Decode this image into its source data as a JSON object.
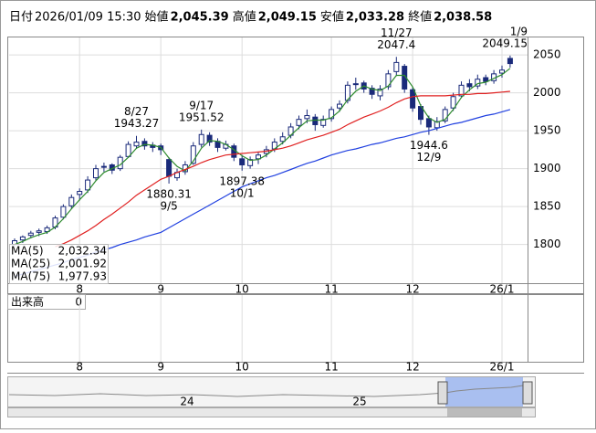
{
  "header": [
    {
      "label": "日付",
      "text": "2026/01/09 15:30"
    },
    {
      "label": "始値",
      "text": "2,045.39"
    },
    {
      "label": "高値",
      "text": "2,049.15",
      "color": "#e00000"
    },
    {
      "label": "安値",
      "text": "2,033.28",
      "color": "#008000"
    },
    {
      "label": "終値",
      "text": "2,038.58"
    }
  ],
  "chart_data": {
    "type": "candlestick",
    "categories": [
      null,
      null,
      null,
      null,
      null,
      null,
      null,
      null,
      "8",
      null,
      null,
      null,
      null,
      null,
      null,
      null,
      null,
      null,
      "9",
      null,
      null,
      null,
      null,
      null,
      null,
      null,
      null,
      null,
      "10",
      null,
      null,
      null,
      null,
      null,
      null,
      null,
      null,
      null,
      null,
      "11",
      null,
      null,
      null,
      null,
      null,
      null,
      null,
      null,
      null,
      "12",
      null,
      null,
      null,
      null,
      null,
      null,
      null,
      null,
      null,
      null,
      "26/1",
      null
    ],
    "open": [
      1800,
      1806,
      1812,
      1816,
      1817,
      1823,
      1836,
      1851,
      1866,
      1872,
      1888,
      1902,
      1905,
      1900,
      1916,
      1930,
      1936,
      1931,
      1930,
      1912,
      1888,
      1896,
      1907,
      1932,
      1944,
      1936,
      1927,
      1930,
      1913,
      1904,
      1913,
      1920,
      1926,
      1936,
      1944,
      1957,
      1966,
      1968,
      1957,
      1966,
      1980,
      1990,
      2011,
      2013,
      2006,
      1996,
      2008,
      2028,
      2035,
      2004,
      1982,
      1966,
      1954,
      1963,
      1980,
      1996,
      2012,
      2009,
      2020,
      2016,
      2026,
      2045.39
    ],
    "high": [
      1808,
      1812,
      1818,
      1821,
      1825,
      1838,
      1853,
      1866,
      1874,
      1890,
      1905,
      1908,
      1907,
      1918,
      1936,
      1943.27,
      1940,
      1935,
      1933,
      1915,
      1900,
      1910,
      1935,
      1951.52,
      1948,
      1940,
      1937,
      1933,
      1918,
      1916,
      1922,
      1930,
      1940,
      1948,
      1960,
      1970,
      1978,
      1972,
      1970,
      1982,
      1990,
      2015,
      2020,
      2016,
      2010,
      2010,
      2030,
      2047.4,
      2038,
      2008,
      1985,
      1970,
      1968,
      1982,
      2000,
      2015,
      2018,
      2024,
      2024,
      2030,
      2036,
      2049.15
    ],
    "low": [
      1797,
      1802,
      1808,
      1811,
      1814,
      1820,
      1833,
      1847,
      1858,
      1868,
      1884,
      1896,
      1893,
      1897,
      1914,
      1926,
      1925,
      1922,
      1918,
      1880.31,
      1884,
      1892,
      1905,
      1928,
      1930,
      1922,
      1924,
      1910,
      1897.38,
      1900,
      1906,
      1915,
      1922,
      1932,
      1940,
      1952,
      1960,
      1950,
      1954,
      1962,
      1975,
      1986,
      2004,
      2000,
      1992,
      1990,
      2004,
      2022,
      2000,
      1975,
      1958,
      1944.6,
      1950,
      1960,
      1976,
      1993,
      2002,
      2005,
      2010,
      2012,
      2020,
      2033.28
    ],
    "close": [
      1805,
      1810,
      1815,
      1818,
      1822,
      1835,
      1850,
      1862,
      1870,
      1885,
      1900,
      1903,
      1898,
      1915,
      1932,
      1935,
      1930,
      1928,
      1925,
      1890,
      1895,
      1905,
      1930,
      1945,
      1935,
      1928,
      1932,
      1915,
      1905,
      1912,
      1918,
      1925,
      1935,
      1942,
      1955,
      1965,
      1970,
      1958,
      1965,
      1978,
      1985,
      2010,
      2012,
      2005,
      1998,
      2005,
      2025,
      2040,
      2005,
      1980,
      1965,
      1955,
      1962,
      1978,
      1995,
      2010,
      2008,
      2018,
      2015,
      2025,
      2030,
      2038.58
    ],
    "up_color": "#ffffff",
    "down_color": "#1a2a7a",
    "outline_color": "#1a2a7a",
    "series": [
      {
        "name": "MA(5)",
        "color": "#2e8b2e",
        "legend_value": "2,032.34",
        "values": [
          1800,
          1804,
          1809,
          1813,
          1816,
          1823,
          1834,
          1847,
          1859,
          1870,
          1884,
          1895,
          1900,
          1905,
          1915,
          1927,
          1932,
          1931,
          1928,
          1914,
          1903,
          1897,
          1910,
          1927,
          1937,
          1936,
          1932,
          1925,
          1917,
          1911,
          1912,
          1918,
          1926,
          1934,
          1944,
          1954,
          1963,
          1964,
          1964,
          1967,
          1976,
          1991,
          2002,
          2009,
          2005,
          2003,
          2009,
          2023,
          2023,
          2008,
          1983,
          1967,
          1961,
          1965,
          1978,
          1994,
          2004,
          2012,
          2014,
          2019,
          2024,
          2032.34
        ]
      },
      {
        "name": "MA(25)",
        "color": "#e02020",
        "legend_value": "2,001.92",
        "values": [
          null,
          null,
          null,
          null,
          null,
          1797,
          1801,
          1806,
          1812,
          1818,
          1825,
          1833,
          1840,
          1848,
          1856,
          1865,
          1872,
          1879,
          1886,
          1890,
          1895,
          1899,
          1903,
          1908,
          1912,
          1915,
          1918,
          1919,
          1920,
          1921,
          1922,
          1923,
          1925,
          1927,
          1930,
          1934,
          1938,
          1941,
          1944,
          1948,
          1952,
          1958,
          1963,
          1968,
          1972,
          1976,
          1981,
          1987,
          1992,
          1995,
          1996,
          1996,
          1996,
          1996,
          1997,
          1998,
          1998,
          1999,
          1999,
          2000,
          2001,
          2001.92
        ]
      },
      {
        "name": "MA(75)",
        "color": "#2040e0",
        "legend_value": "1,977.93",
        "values": [
          1758,
          1761,
          1764,
          1767,
          1770,
          1773,
          1776,
          1780,
          1783,
          1786,
          1790,
          1793,
          1796,
          1800,
          1803,
          1806,
          1810,
          1813,
          1816,
          1822,
          1828,
          1834,
          1840,
          1846,
          1852,
          1858,
          1864,
          1870,
          1876,
          1880,
          1884,
          1888,
          1891,
          1895,
          1899,
          1903,
          1907,
          1910,
          1914,
          1918,
          1921,
          1924,
          1926,
          1929,
          1932,
          1934,
          1937,
          1940,
          1942,
          1945,
          1948,
          1950,
          1953,
          1956,
          1959,
          1961,
          1964,
          1967,
          1970,
          1972,
          1975,
          1977.93
        ]
      }
    ],
    "annotations": [
      {
        "date": "8/27",
        "value": 1943.27
      },
      {
        "date": "9/5",
        "value": 1880.31
      },
      {
        "date": "9/17",
        "value": 1951.52
      },
      {
        "date": "10/1",
        "value": 1897.38
      },
      {
        "date": "11/27",
        "value": 2047.4
      },
      {
        "date": "12/9",
        "value": 1944.6
      },
      {
        "date": "1/9",
        "value": 2049.15
      }
    ],
    "ylim": [
      1749,
      2073
    ],
    "yticks": [
      1800,
      1850,
      1900,
      1950,
      2000,
      2050
    ],
    "grid": true
  },
  "volume": {
    "label": "出来高",
    "value": 0
  },
  "navigator": {
    "labels": [
      "24",
      "25"
    ]
  }
}
